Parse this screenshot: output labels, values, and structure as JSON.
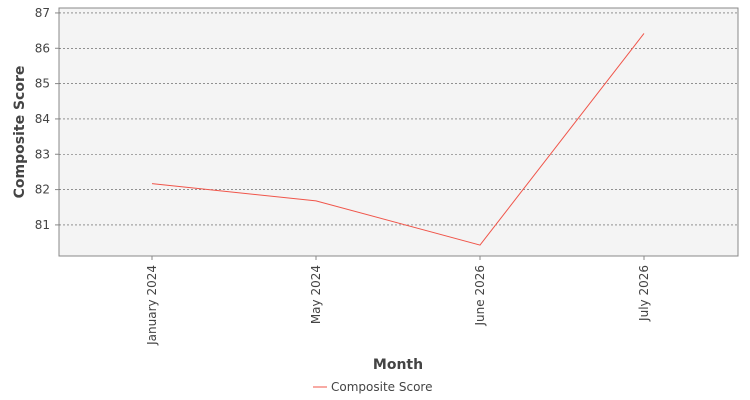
{
  "chart_data": {
    "type": "line",
    "x_label": "Month",
    "y_label": "Composite Score",
    "categories": [
      "January 2024",
      "May 2024",
      "June 2026",
      "July 2026"
    ],
    "series": [
      {
        "name": "Composite Score",
        "color": "#f0554a",
        "values": [
          82.17,
          81.68,
          80.43,
          86.42
        ]
      }
    ],
    "ylim": [
      80.12,
      87.14
    ],
    "yticks": [
      81,
      82,
      83,
      84,
      85,
      86,
      87
    ],
    "grid": true,
    "legend": "bottom"
  }
}
